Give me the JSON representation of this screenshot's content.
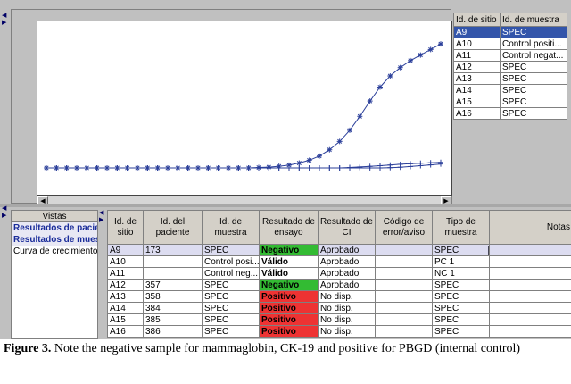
{
  "chart_data": {
    "type": "line",
    "title": "",
    "xlabel": "",
    "ylabel": "",
    "x": [
      1,
      2,
      3,
      4,
      5,
      6,
      7,
      8,
      9,
      10,
      11,
      12,
      13,
      14,
      15,
      16,
      17,
      18,
      19,
      20,
      21,
      22,
      23,
      24,
      25,
      26,
      27,
      28,
      29,
      30,
      31,
      32,
      33,
      34,
      35,
      36,
      37,
      38,
      39,
      40
    ],
    "ylim": [
      0,
      100
    ],
    "series": [
      {
        "name": "A9",
        "marker": "star",
        "values": [
          0,
          0,
          0,
          0,
          0,
          0,
          0,
          0,
          0,
          0,
          0,
          0,
          0,
          0,
          0,
          0,
          0,
          0,
          0,
          0,
          0,
          0.3,
          0.6,
          1.2,
          2,
          3.5,
          5.5,
          8.5,
          13,
          19,
          27,
          37,
          48,
          58,
          66,
          72,
          77,
          81,
          85,
          89
        ]
      },
      {
        "name": "A10",
        "marker": "plus",
        "values": [
          0,
          0,
          0,
          0,
          0,
          0,
          0,
          0,
          0,
          0,
          0,
          0,
          0,
          0,
          0,
          0,
          0,
          0,
          0,
          0,
          0,
          0,
          0,
          0,
          0,
          0,
          0,
          0,
          0,
          0,
          0,
          0,
          0,
          0,
          0.2,
          0.5,
          1,
          1.6,
          2.2,
          2.8
        ]
      },
      {
        "name": "A11",
        "marker": "plus",
        "values": [
          0,
          0,
          0,
          0,
          0,
          0,
          0,
          0,
          0,
          0,
          0,
          0,
          0,
          0,
          0,
          0,
          0,
          0,
          0,
          0,
          0,
          0,
          0,
          0,
          0,
          0,
          0,
          0,
          0,
          0,
          0.3,
          0.7,
          1.1,
          1.6,
          2.1,
          2.6,
          3,
          3.4,
          3.7,
          4
        ]
      }
    ]
  },
  "color_series": "#2b3f9a",
  "site_table": {
    "headers": [
      "Id. de sitio",
      "Id. de muestra"
    ],
    "rows": [
      [
        "A9",
        "SPEC"
      ],
      [
        "A10",
        "Control positi..."
      ],
      [
        "A11",
        "Control negat..."
      ],
      [
        "A12",
        "SPEC"
      ],
      [
        "A13",
        "SPEC"
      ],
      [
        "A14",
        "SPEC"
      ],
      [
        "A15",
        "SPEC"
      ],
      [
        "A16",
        "SPEC"
      ]
    ]
  },
  "vistas": {
    "header": "Vistas",
    "items": [
      "Resultados de pacie",
      "Resultados de mues",
      "Curva de crecimiento"
    ]
  },
  "results": {
    "headers": [
      "Id. de sitio",
      "Id. del paciente",
      "Id. de muestra",
      "Resultado de ensayo",
      "Resultado de CI",
      "Código de error/aviso",
      "Tipo de muestra",
      "Notas"
    ],
    "rows": [
      [
        "A9",
        "173",
        "SPEC",
        "Negativo",
        "Aprobado",
        "",
        "SPEC",
        ""
      ],
      [
        "A10",
        "",
        "Control posi...",
        "Válido",
        "Aprobado",
        "",
        "PC 1",
        ""
      ],
      [
        "A11",
        "",
        "Control neg...",
        "Válido",
        "Aprobado",
        "",
        "NC 1",
        ""
      ],
      [
        "A12",
        "357",
        "SPEC",
        "Negativo",
        "Aprobado",
        "",
        "SPEC",
        ""
      ],
      [
        "A13",
        "358",
        "SPEC",
        "Positivo",
        "No disp.",
        "",
        "SPEC",
        ""
      ],
      [
        "A14",
        "384",
        "SPEC",
        "Positivo",
        "No disp.",
        "",
        "SPEC",
        ""
      ],
      [
        "A15",
        "385",
        "SPEC",
        "Positivo",
        "No disp.",
        "",
        "SPEC",
        ""
      ],
      [
        "A16",
        "386",
        "SPEC",
        "Positivo",
        "No disp.",
        "",
        "SPEC",
        ""
      ]
    ]
  },
  "caption": {
    "label": "Figure 3.",
    "text": " Note the negative sample for mammaglobin, CK-19 and positive for PBGD (internal control)"
  }
}
